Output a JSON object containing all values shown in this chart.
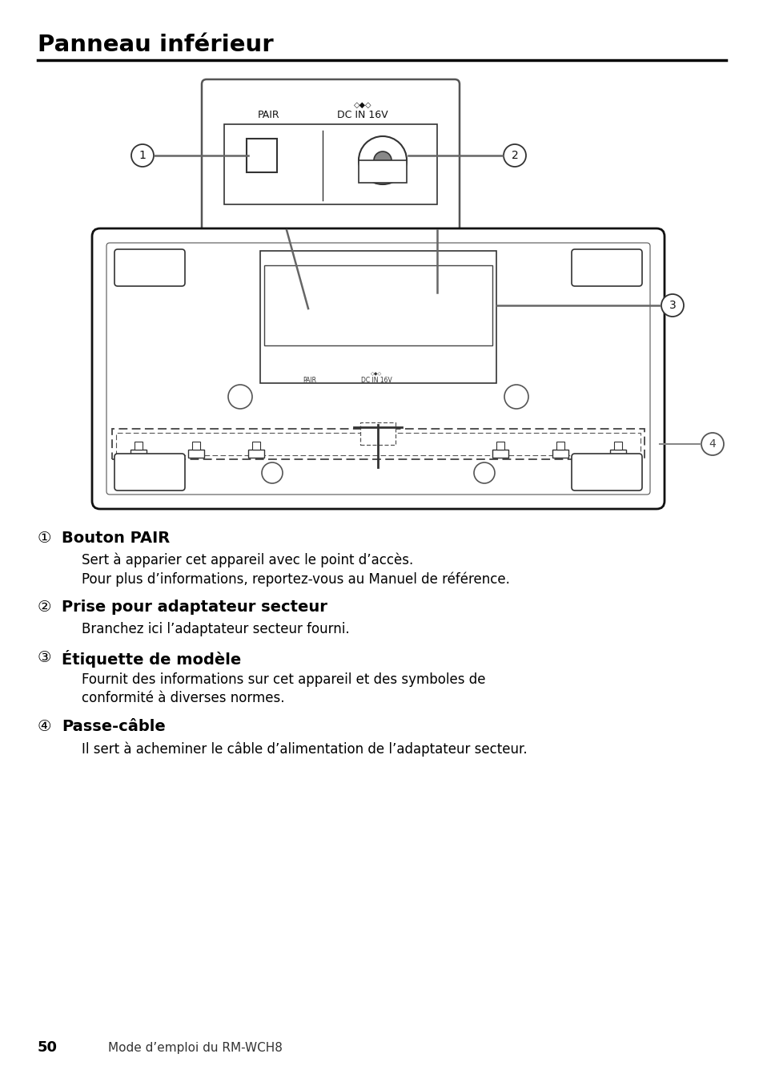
{
  "title": "Panneau inférieur",
  "background_color": "#ffffff",
  "text_color": "#000000",
  "items": [
    {
      "number": "①",
      "heading": "Bouton PAIR",
      "lines": [
        "Sert à apparier cet appareil avec le point d’accès.",
        "Pour plus d’informations, reportez-vous au Manuel de référence."
      ]
    },
    {
      "number": "②",
      "heading": "Prise pour adaptateur secteur",
      "lines": [
        "Branchez ici l’adaptateur secteur fourni."
      ]
    },
    {
      "number": "③",
      "heading": "Étiquette de modèle",
      "lines": [
        "Fournit des informations sur cet appareil et des symboles de",
        "conformité à diverses normes."
      ]
    },
    {
      "number": "④",
      "heading": "Passe-câble",
      "lines": [
        "Il sert à acheminer le câble d’alimentation de l’adaptateur secteur."
      ]
    }
  ],
  "footer_number": "50",
  "footer_text": "Mode d’emploi du RM-WCH8"
}
